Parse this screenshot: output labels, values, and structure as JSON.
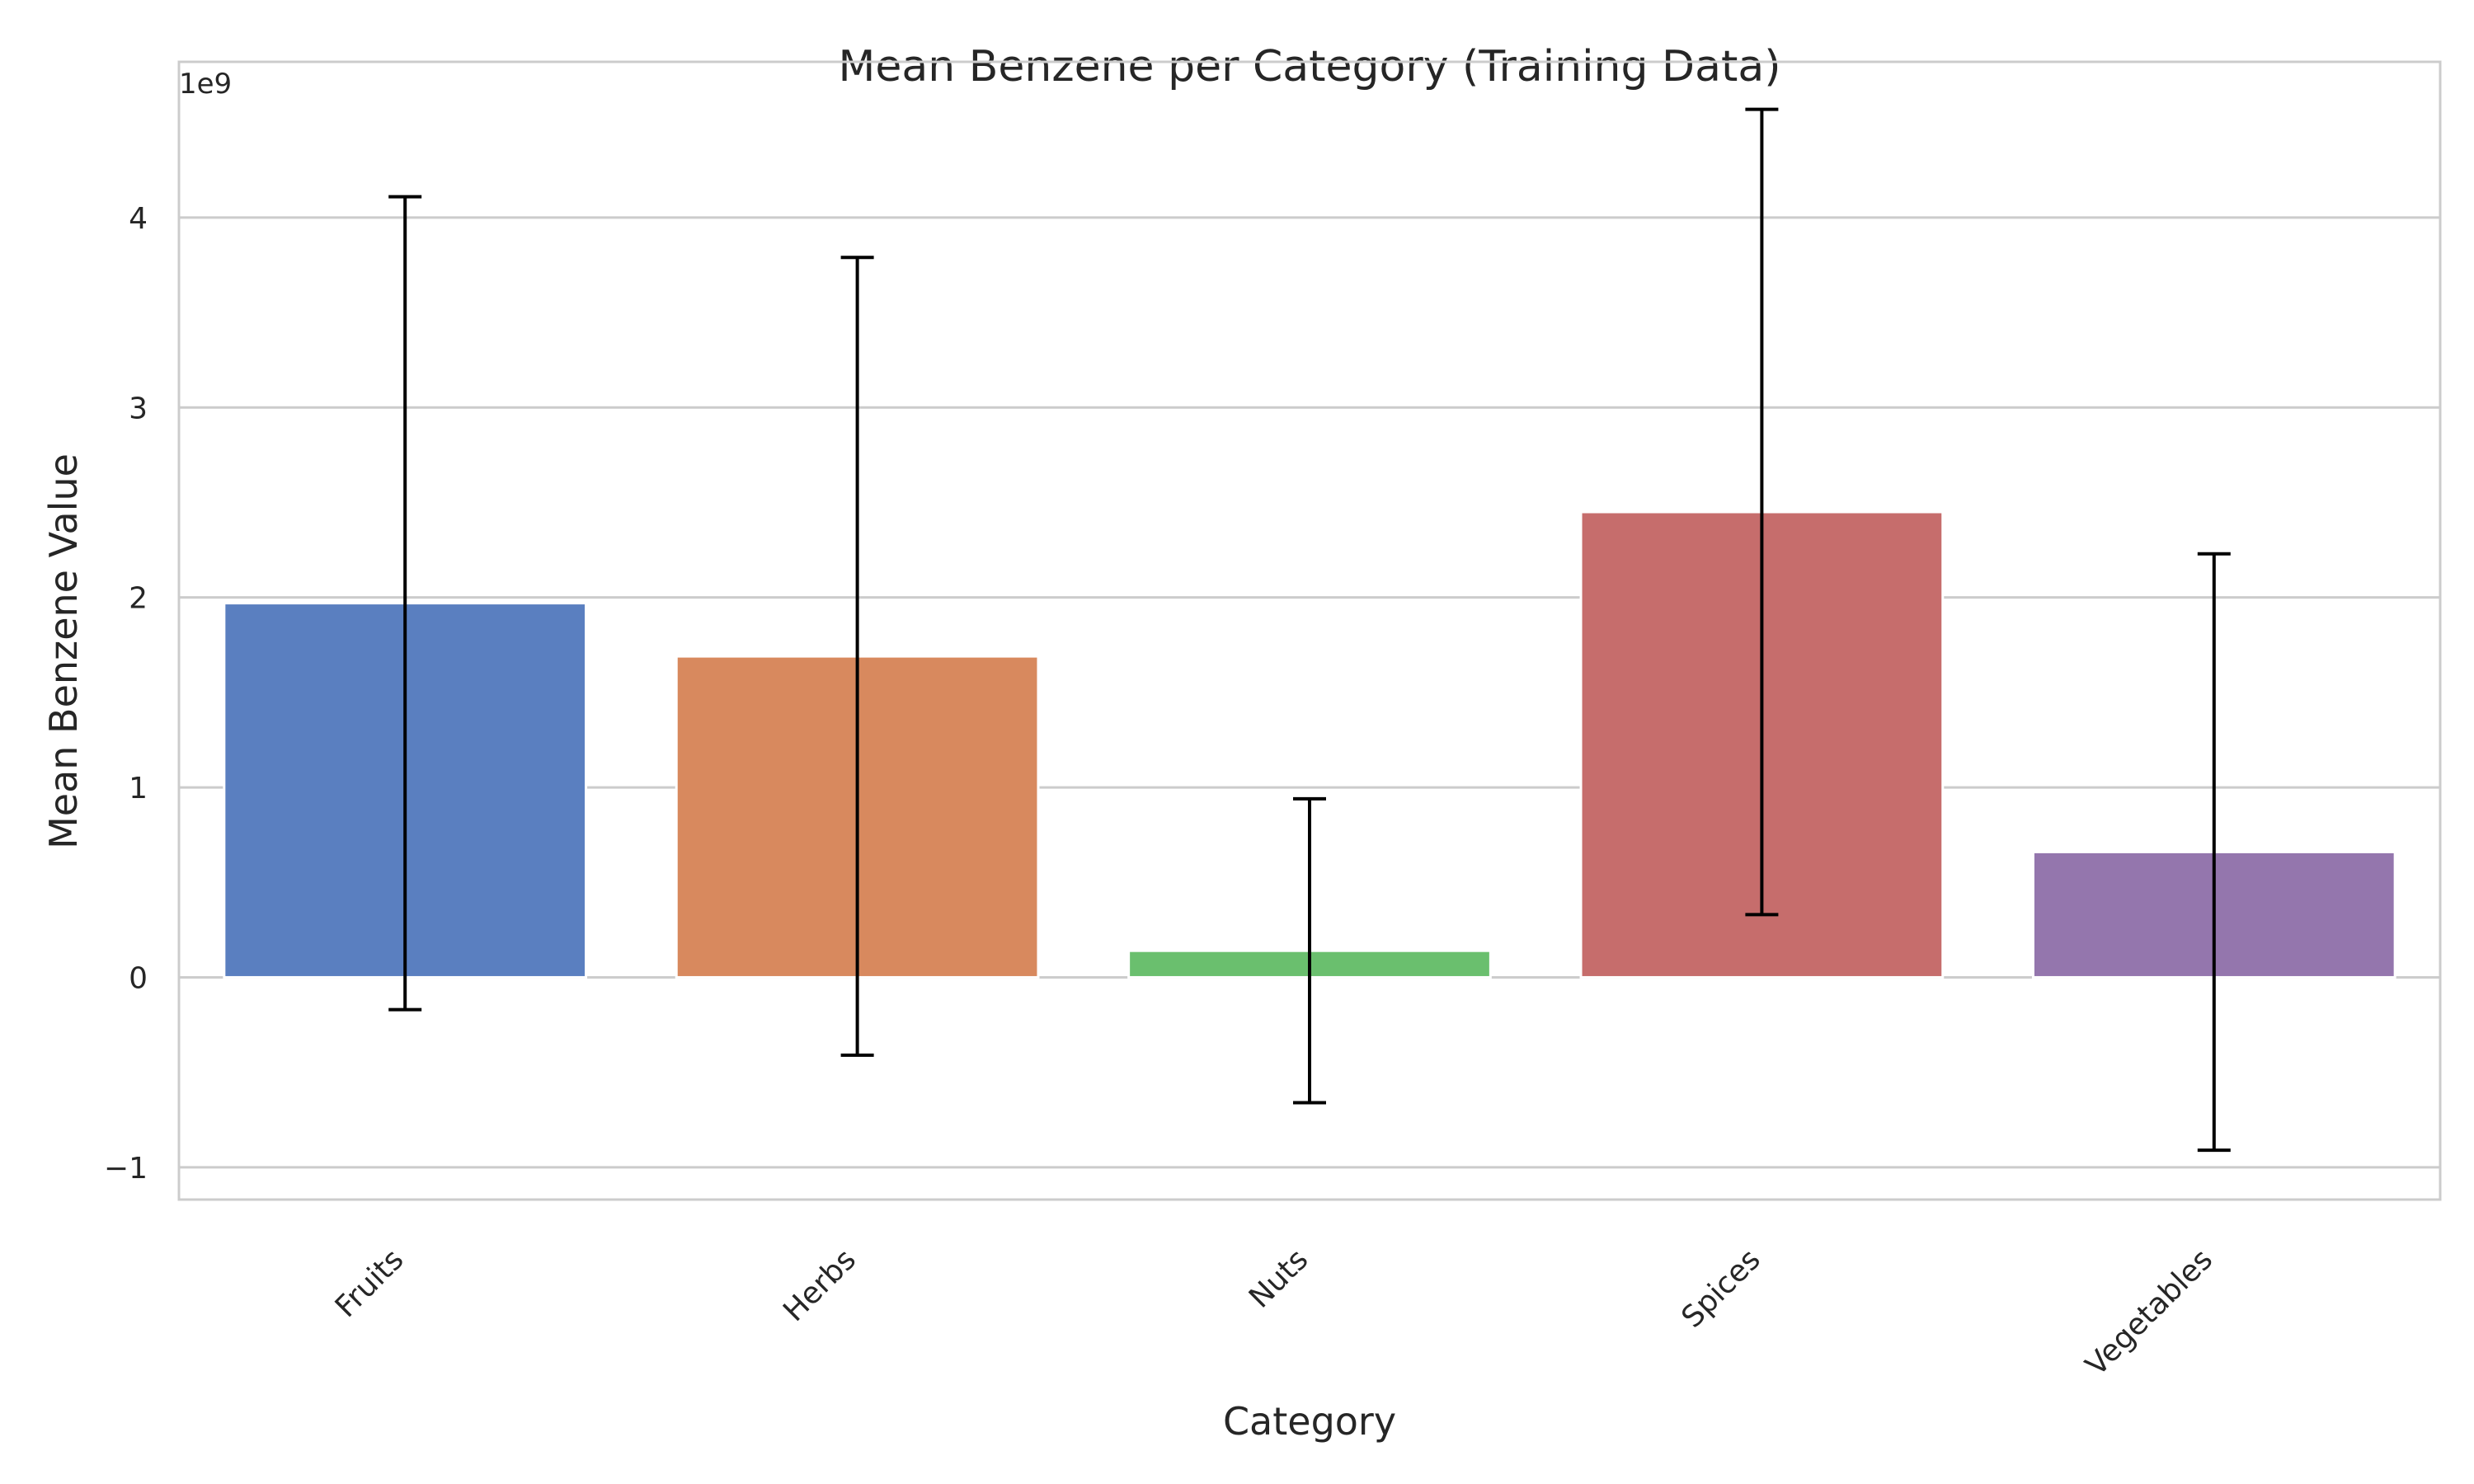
{
  "chart_data": {
    "type": "bar",
    "title": "Mean Benzene per Category (Training Data)",
    "xlabel": "Category",
    "ylabel": "Mean Benzene Value",
    "y_offset_label": "1e9",
    "categories": [
      "Fruits",
      "Herbs",
      "Nuts",
      "Spices",
      "Vegetables"
    ],
    "values": [
      1.97,
      1.69,
      0.14,
      2.45,
      0.66
    ],
    "errors": [
      2.14,
      2.1,
      0.8,
      2.12,
      1.57
    ],
    "y_ticks": [
      -1,
      0,
      1,
      2,
      3,
      4
    ],
    "y_tick_labels": [
      "−1",
      "0",
      "1",
      "2",
      "3",
      "4"
    ],
    "ylim": [
      -1.17,
      4.82
    ],
    "bar_colors": [
      "#5a7fc0",
      "#d8895e",
      "#6abf6e",
      "#c66d6c",
      "#9476ad"
    ],
    "grid": true,
    "legend": "none"
  }
}
